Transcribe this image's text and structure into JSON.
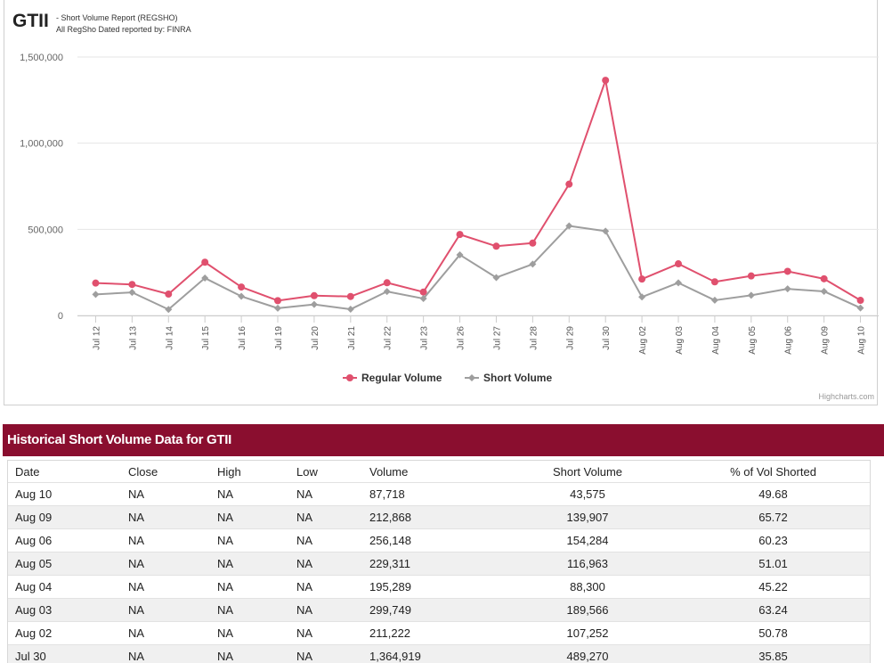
{
  "header": {
    "ticker": "GTII",
    "report_name": "- Short Volume Report  (REGSHO)",
    "report_source": "All RegSho Dated reported by: FINRA"
  },
  "chart_credits": "Highcharts.com",
  "colors": {
    "regular": "#e0506e",
    "short": "#9e9e9e",
    "table_header_bg": "#8a0e2f"
  },
  "chart_data": {
    "type": "line",
    "title": "",
    "xlabel": "",
    "ylabel": "",
    "ylim": [
      0,
      1500000
    ],
    "yticks": [
      0,
      500000,
      1000000,
      1500000
    ],
    "ytick_labels": [
      "0",
      "500,000",
      "1,000,000",
      "1,500,000"
    ],
    "grid": true,
    "legend_position": "bottom-center",
    "categories": [
      "Jul 12",
      "Jul 13",
      "Jul 14",
      "Jul 15",
      "Jul 16",
      "Jul 19",
      "Jul 20",
      "Jul 21",
      "Jul 22",
      "Jul 23",
      "Jul 26",
      "Jul 27",
      "Jul 28",
      "Jul 29",
      "Jul 30",
      "Aug 02",
      "Aug 03",
      "Aug 04",
      "Aug 05",
      "Aug 06",
      "Aug 09",
      "Aug 10"
    ],
    "series": [
      {
        "name": "Regular Volume",
        "color": "#e0506e",
        "marker": "circle",
        "values": [
          188000,
          180000,
          124000,
          309000,
          165000,
          86000,
          115000,
          110000,
          190000,
          136000,
          470000,
          402000,
          420000,
          762000,
          1364919,
          211222,
          299749,
          195289,
          229311,
          256148,
          212868,
          87718
        ]
      },
      {
        "name": "Short Volume",
        "color": "#9e9e9e",
        "marker": "diamond",
        "values": [
          122000,
          134000,
          35000,
          217000,
          111000,
          42000,
          64000,
          36000,
          139000,
          98000,
          352000,
          220000,
          298000,
          520000,
          489270,
          107252,
          189566,
          88300,
          116963,
          154284,
          139907,
          43575
        ]
      }
    ]
  },
  "table": {
    "title": "Historical Short Volume Data for GTII",
    "columns": [
      "Date",
      "Close",
      "High",
      "Low",
      "Volume",
      "Short Volume",
      "% of Vol Shorted"
    ],
    "rows": [
      [
        "Aug 10",
        "NA",
        "NA",
        "NA",
        "87,718",
        "43,575",
        "49.68"
      ],
      [
        "Aug 09",
        "NA",
        "NA",
        "NA",
        "212,868",
        "139,907",
        "65.72"
      ],
      [
        "Aug 06",
        "NA",
        "NA",
        "NA",
        "256,148",
        "154,284",
        "60.23"
      ],
      [
        "Aug 05",
        "NA",
        "NA",
        "NA",
        "229,311",
        "116,963",
        "51.01"
      ],
      [
        "Aug 04",
        "NA",
        "NA",
        "NA",
        "195,289",
        "88,300",
        "45.22"
      ],
      [
        "Aug 03",
        "NA",
        "NA",
        "NA",
        "299,749",
        "189,566",
        "63.24"
      ],
      [
        "Aug 02",
        "NA",
        "NA",
        "NA",
        "211,222",
        "107,252",
        "50.78"
      ],
      [
        "Jul 30",
        "NA",
        "NA",
        "NA",
        "1,364,919",
        "489,270",
        "35.85"
      ]
    ]
  }
}
